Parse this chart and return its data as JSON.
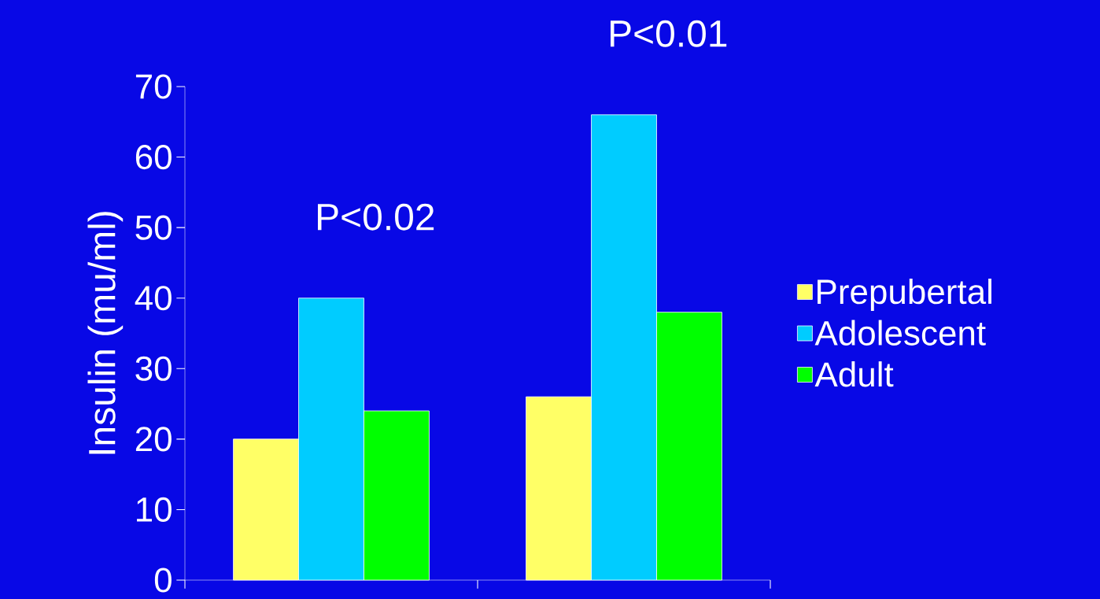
{
  "chart_data": {
    "type": "bar",
    "ylabel": "Insulin (mu/ml)",
    "categories": [
      null,
      null
    ],
    "series": [
      {
        "name": "Prepubertal",
        "color": "#ffff66",
        "values": [
          20,
          26
        ]
      },
      {
        "name": "Adolescent",
        "color": "#00ccff",
        "values": [
          40,
          66
        ]
      },
      {
        "name": "Adult",
        "color": "#00ff00",
        "values": [
          24,
          38
        ]
      }
    ],
    "ylim": [
      0,
      70
    ],
    "yticks": [
      0,
      10,
      20,
      30,
      40,
      50,
      60,
      70
    ],
    "legend": "right",
    "grid": false,
    "annotations": [
      "P<0.02",
      "P<0.01"
    ]
  }
}
